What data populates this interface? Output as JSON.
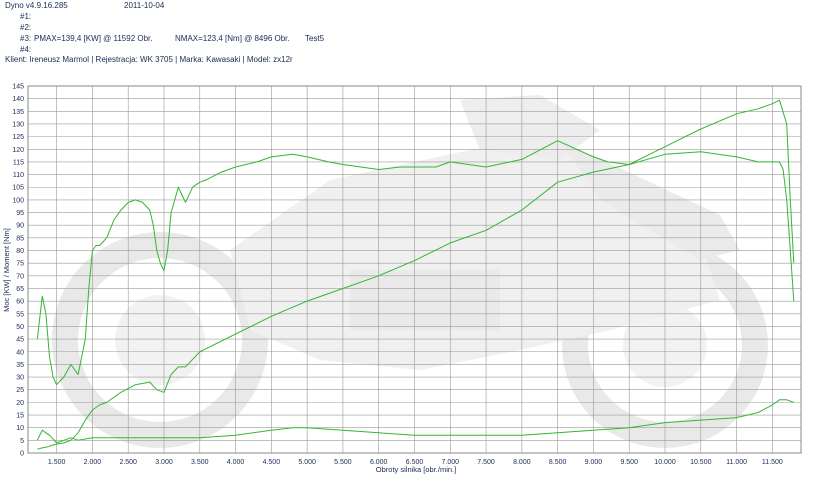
{
  "header": {
    "app_version": "Dyno v4.9.16.285",
    "date": "2011-10-04",
    "line1": "#1:",
    "line2": "#2:",
    "line3_label": "#3:",
    "line3_pmax": "PMAX=139,4 [KW] @ 11592 Obr.",
    "line3_nmax": "NMAX=123,4 [Nm] @ 8496 Obr.",
    "line3_test": "Test5",
    "line4": "#4:",
    "client_line": "Klient: Ireneusz Marmol | Rejestracja: WK 3705 | Marka: Kawasaki | Model: zx12r"
  },
  "colors": {
    "grid": "#9a9a9a",
    "curve": "#35b535",
    "text": "#1a2a55",
    "watermark": "#dcdcdc"
  },
  "chart_data": {
    "type": "line",
    "xlabel": "Obroty silnika [obr./min.]",
    "ylabel": "Moc [KW] / Moment [Nm]",
    "xlim": [
      1100,
      11900
    ],
    "ylim": [
      0,
      145
    ],
    "x_ticks": [
      1500,
      2000,
      2500,
      3000,
      3500,
      4000,
      4500,
      5000,
      5500,
      6000,
      6500,
      7000,
      7500,
      8000,
      8500,
      9000,
      9500,
      10000,
      10500,
      11000,
      11500
    ],
    "x_tick_labels": [
      "1.500",
      "2.000",
      "2.500",
      "3.000",
      "3.500",
      "4.000",
      "4.500",
      "5.000",
      "5.500",
      "6.000",
      "6.500",
      "7.000",
      "7.500",
      "8.000",
      "8.500",
      "9.000",
      "9.500",
      "10.000",
      "10.500",
      "11.000",
      "11.500"
    ],
    "y_ticks": [
      0,
      5,
      10,
      15,
      20,
      25,
      30,
      35,
      40,
      45,
      50,
      55,
      60,
      65,
      70,
      75,
      80,
      85,
      90,
      95,
      100,
      105,
      110,
      115,
      120,
      125,
      130,
      135,
      140,
      145
    ],
    "grid": true,
    "series": [
      {
        "role": "power",
        "x": [
          1230,
          1300,
          1380,
          1430,
          1500,
          1600,
          1700,
          1800,
          1900,
          2000,
          2100,
          2200,
          2400,
          2600,
          2800,
          2900,
          3000,
          3100,
          3200,
          3300,
          3500,
          4000,
          4500,
          5000,
          5500,
          6000,
          6500,
          7000,
          7500,
          8000,
          8500,
          9000,
          9500,
          10000,
          10500,
          11000,
          11300,
          11500,
          11600,
          11700,
          11750,
          11800
        ],
        "y": [
          1.5,
          2,
          2.5,
          3,
          3.5,
          4,
          5,
          8,
          13,
          17,
          19,
          20,
          24,
          27,
          28,
          25,
          24,
          31,
          34,
          34,
          40,
          47,
          54,
          60,
          65,
          70,
          76,
          83,
          88,
          96,
          107,
          111,
          114,
          121,
          128,
          134,
          136,
          138,
          139.4,
          130,
          100,
          75
        ]
      },
      {
        "role": "torque",
        "x": [
          1230,
          1300,
          1350,
          1400,
          1450,
          1500,
          1600,
          1700,
          1800,
          1900,
          1950,
          2000,
          2050,
          2100,
          2200,
          2300,
          2400,
          2500,
          2600,
          2700,
          2800,
          2850,
          2900,
          2950,
          3000,
          3050,
          3100,
          3200,
          3300,
          3400,
          3500,
          3600,
          3800,
          4000,
          4300,
          4500,
          4800,
          5000,
          5300,
          5500,
          6000,
          6300,
          6500,
          6800,
          7000,
          7500,
          8000,
          8500,
          9000,
          9200,
          9500,
          10000,
          10500,
          11000,
          11300,
          11500,
          11600,
          11650,
          11700,
          11750,
          11800
        ],
        "y": [
          45,
          62,
          55,
          38,
          30,
          27,
          30,
          35,
          31,
          45,
          65,
          80,
          82,
          82,
          85,
          92,
          96,
          99,
          100,
          99,
          96,
          90,
          80,
          75,
          72,
          80,
          95,
          105,
          99,
          105,
          107,
          108,
          111,
          113,
          115,
          117,
          118,
          117,
          115,
          114,
          112,
          113,
          113,
          113,
          115,
          113,
          116,
          123.4,
          117,
          115,
          114,
          118,
          119,
          117,
          115,
          115,
          115,
          112,
          100,
          80,
          60
        ]
      },
      {
        "role": "loss",
        "x": [
          1230,
          1300,
          1400,
          1500,
          1600,
          1700,
          1800,
          2000,
          2500,
          3000,
          3500,
          4000,
          4500,
          4800,
          5000,
          5500,
          6000,
          6500,
          7000,
          7500,
          8000,
          8500,
          9000,
          9500,
          10000,
          10500,
          11000,
          11300,
          11500,
          11600,
          11700,
          11800
        ],
        "y": [
          5,
          9,
          7,
          4,
          5,
          6,
          5,
          6,
          6,
          6,
          6,
          7,
          9,
          10,
          10,
          9,
          8,
          7,
          7,
          7,
          7,
          8,
          9,
          10,
          12,
          13,
          14,
          16,
          19,
          21,
          21,
          20
        ]
      }
    ]
  }
}
